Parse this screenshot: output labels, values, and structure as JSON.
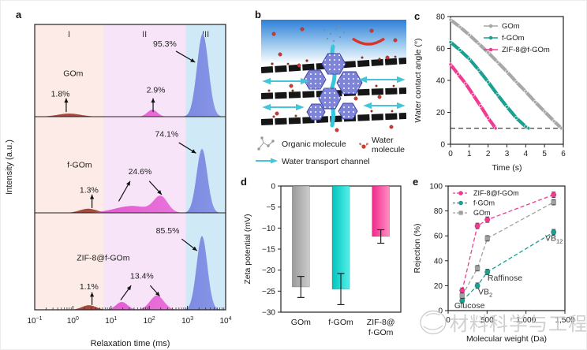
{
  "panel_letters": {
    "a": "a",
    "b": "b",
    "c": "c",
    "d": "d",
    "e": "e"
  },
  "colors": {
    "gom_gray": "#a7a7a7",
    "fgom_teal": "#1aa090",
    "zif_pink": "#f23a92",
    "region_I_bg": "#fcebe6",
    "region_II_bg": "#f8e4f8",
    "region_III_bg": "#d0e9f7"
  },
  "panel_b": {
    "legend": [
      {
        "icon": "organic-molecule-icon",
        "label": "Organic molecule"
      },
      {
        "icon": "water-molecule-icon",
        "label": "Water molecule"
      },
      {
        "icon": "water-transport-channel-icon",
        "label": "Water transport channel"
      }
    ]
  },
  "watermark": {
    "text": "材料科学与工程"
  },
  "chart_data": [
    {
      "id": "a",
      "type": "area",
      "xlabel": "Relaxation time (ms)",
      "ylabel": "Intensity (a.u.)",
      "x_log_range": [
        -1,
        4
      ],
      "xtick_exponents": [
        -1,
        0,
        1,
        2,
        3,
        4
      ],
      "regions": [
        {
          "label": "I",
          "log_start": -1,
          "log_end": 0.8,
          "color": "#fcebe6"
        },
        {
          "label": "II",
          "log_start": 0.8,
          "log_end": 2.95,
          "color": "#f8e4f8"
        },
        {
          "label": "III",
          "log_start": 2.95,
          "log_end": 4,
          "color": "#d0e9f7"
        }
      ],
      "subplots": [
        {
          "sample": "GOm",
          "sample_pos": [
            0.15,
            0.56
          ],
          "curves": [
            {
              "color": "#a8473b",
              "gaussians": [
                [
                  -0.1,
                  0.3,
                  0.035
                ]
              ]
            },
            {
              "color": "#d844c4",
              "gradient": [
                "#d844c4",
                "#ef83e3"
              ],
              "gaussians": [
                [
                  2.08,
                  0.13,
                  0.08
                ]
              ]
            },
            {
              "color": "#4254c7",
              "gradient": [
                "#4254c7",
                "#8b98e8"
              ],
              "gaussians": [
                [
                  3.4,
                  0.15,
                  0.95
                ]
              ]
            }
          ],
          "callouts": [
            {
              "text": "1.8%",
              "tx": 0.085,
              "ty": 0.78,
              "arrows": [
                [
                  0.165,
                  0.95,
                  0.165,
                  0.8
                ]
              ]
            },
            {
              "text": "2.9%",
              "tx": 0.585,
              "ty": 0.74,
              "arrows": [
                [
                  0.62,
                  0.95,
                  0.62,
                  0.8
                ]
              ]
            },
            {
              "text": "95.3%",
              "tx": 0.62,
              "ty": 0.24,
              "arrows": [
                [
                  0.74,
                  0.29,
                  0.84,
                  0.41
                ]
              ]
            }
          ]
        },
        {
          "sample": "f-GOm",
          "sample_pos": [
            0.17,
            0.53
          ],
          "curves": [
            {
              "color": "#a8473b",
              "gaussians": [
                [
                  0.4,
                  0.22,
                  0.045
                ]
              ]
            },
            {
              "color": "#d844c4",
              "gradient": [
                "#d844c4",
                "#ef83e3"
              ],
              "gaussians": [
                [
                  1.55,
                  0.45,
                  0.075
                ],
                [
                  2.3,
                  0.18,
                  0.17
                ]
              ]
            },
            {
              "color": "#4254c7",
              "gradient": [
                "#4254c7",
                "#8b98e8"
              ],
              "gaussians": [
                [
                  3.38,
                  0.14,
                  0.7
                ]
              ]
            }
          ],
          "callouts": [
            {
              "text": "74.1%",
              "tx": 0.63,
              "ty": 0.21,
              "arrows": [
                [
                  0.755,
                  0.27,
                  0.845,
                  0.38
                ]
              ]
            },
            {
              "text": "24.6%",
              "tx": 0.49,
              "ty": 0.6,
              "arrows": [
                [
                  0.44,
                  0.88,
                  0.5,
                  0.67
                ],
                [
                  0.6,
                  0.67,
                  0.665,
                  0.81
                ]
              ]
            },
            {
              "text": "1.3%",
              "tx": 0.235,
              "ty": 0.79,
              "arrows": [
                [
                  0.3,
                  0.95,
                  0.3,
                  0.81
                ]
              ]
            }
          ]
        },
        {
          "sample": "ZIF-8@f-GOm",
          "sample_pos": [
            0.22,
            0.49
          ],
          "curves": [
            {
              "color": "#a8473b",
              "gaussians": [
                [
                  0.42,
                  0.18,
                  0.05
                ]
              ]
            },
            {
              "color": "#d844c4",
              "gradient": [
                "#d844c4",
                "#ef83e3"
              ],
              "gaussians": [
                [
                  1.28,
                  0.15,
                  0.085
                ],
                [
                  2.2,
                  0.18,
                  0.155
                ]
              ]
            },
            {
              "color": "#4254c7",
              "gradient": [
                "#4254c7",
                "#8b98e8"
              ],
              "gaussians": [
                [
                  3.38,
                  0.14,
                  0.8
                ]
              ]
            }
          ],
          "callouts": [
            {
              "text": "85.5%",
              "tx": 0.635,
              "ty": 0.21,
              "arrows": [
                [
                  0.77,
                  0.27,
                  0.85,
                  0.39
                ]
              ]
            },
            {
              "text": "13.4%",
              "tx": 0.5,
              "ty": 0.68,
              "arrows": [
                [
                  0.45,
                  0.9,
                  0.505,
                  0.75
                ],
                [
                  0.605,
                  0.75,
                  0.655,
                  0.86
                ]
              ]
            },
            {
              "text": "1.1%",
              "tx": 0.235,
              "ty": 0.79,
              "arrows": [
                [
                  0.3,
                  0.95,
                  0.3,
                  0.82
                ]
              ]
            }
          ]
        }
      ]
    },
    {
      "id": "c",
      "type": "line",
      "xlabel": "Time (s)",
      "ylabel": "Water contact angle (°)",
      "xlim": [
        0,
        6
      ],
      "ylim": [
        0,
        80
      ],
      "xticks": [
        0,
        1,
        2,
        3,
        4,
        5,
        6
      ],
      "yticks": [
        0,
        20,
        40,
        60,
        80
      ],
      "dashed_reference_y": 10,
      "legend_position": "top-right",
      "series": [
        {
          "name": "GOm",
          "color": "#a7a7a7",
          "marker": "circle",
          "points": [
            [
              0,
              78
            ],
            [
              0.5,
              73.5
            ],
            [
              1,
              68.5
            ],
            [
              1.5,
              63
            ],
            [
              2,
              57.5
            ],
            [
              2.5,
              51.5
            ],
            [
              3,
              45.5
            ],
            [
              3.5,
              39
            ],
            [
              4,
              33
            ],
            [
              4.5,
              26.5
            ],
            [
              5,
              20.5
            ],
            [
              5.5,
              14.5
            ],
            [
              5.9,
              10
            ]
          ]
        },
        {
          "name": "f-GOm",
          "color": "#1aa090",
          "marker": "circle",
          "points": [
            [
              0,
              64
            ],
            [
              0.5,
              59
            ],
            [
              1,
              53.5
            ],
            [
              1.5,
              46.5
            ],
            [
              2,
              39
            ],
            [
              2.5,
              31
            ],
            [
              3,
              23.5
            ],
            [
              3.5,
              16.5
            ],
            [
              4,
              11
            ],
            [
              4.15,
              10
            ]
          ]
        },
        {
          "name": "ZIF-8@f-GOm",
          "color": "#f23a92",
          "marker": "circle",
          "points": [
            [
              0,
              50
            ],
            [
              0.4,
              44
            ],
            [
              0.8,
              38
            ],
            [
              1.2,
              31
            ],
            [
              1.6,
              24
            ],
            [
              2,
              16.5
            ],
            [
              2.4,
              10
            ]
          ]
        }
      ]
    },
    {
      "id": "d",
      "type": "bar",
      "ylabel": "Zeta potential (mV)",
      "categories": [
        [
          "GOm"
        ],
        [
          "f-GOm"
        ],
        [
          "ZIF-8@",
          "f-GOm"
        ]
      ],
      "values": [
        -24,
        -24.5,
        -12
      ],
      "errors": [
        2.5,
        3.7,
        1.6
      ],
      "ylim": [
        -30,
        0
      ],
      "yticks": [
        0,
        -5,
        -10,
        -15,
        -20,
        -25,
        -30
      ],
      "bar_gradients": [
        [
          "#9a9a9a",
          "#cccccc"
        ],
        [
          "#00c4bc",
          "#55efe9"
        ],
        [
          "#f02a8c",
          "#ff8ec2"
        ]
      ]
    },
    {
      "id": "e",
      "type": "scatter",
      "xlabel": "Molecular weight (Da)",
      "ylabel": "Rejection (%)",
      "xlim": [
        0,
        1500
      ],
      "ylim": [
        0,
        100
      ],
      "xticks": [
        0,
        500,
        1000,
        1500
      ],
      "xtick_labels": [
        "0",
        "500",
        "1,000",
        "1,500"
      ],
      "yticks": [
        0,
        20,
        40,
        60,
        80,
        100
      ],
      "line_style": "dashed",
      "legend_position": "top-left",
      "error": 2.2,
      "series": [
        {
          "name": "ZIF-8@f-GOm",
          "color": "#f23a92",
          "marker": "circle",
          "points": [
            [
              180,
              16
            ],
            [
              376,
              68
            ],
            [
              504,
              73
            ],
            [
              1355,
              93
            ]
          ]
        },
        {
          "name": "f-GOm",
          "color": "#1aa090",
          "marker": "circle",
          "points": [
            [
              180,
              8
            ],
            [
              376,
              20
            ],
            [
              504,
              31
            ],
            [
              1355,
              63
            ]
          ]
        },
        {
          "name": "GOm",
          "color": "#a0a0a0",
          "marker": "square",
          "points": [
            [
              180,
              12
            ],
            [
              376,
              34
            ],
            [
              504,
              58
            ],
            [
              1355,
              87
            ]
          ]
        }
      ],
      "point_labels": [
        {
          "text": "Glucose",
          "x": 80,
          "y": 2
        },
        {
          "text": "VB",
          "sub": "2",
          "x": 385,
          "y": 13
        },
        {
          "text": "Raffinose",
          "x": 506,
          "y": 24
        },
        {
          "text": "VB",
          "sub": "12",
          "x": 1246,
          "y": 56
        }
      ]
    }
  ]
}
